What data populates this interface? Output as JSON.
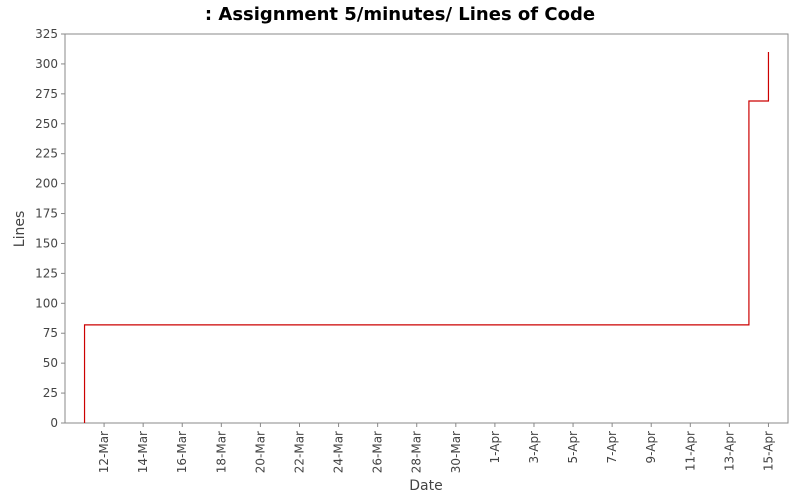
{
  "chart_data": {
    "type": "step",
    "title": ": Assignment 5/minutes/ Lines of Code",
    "x_label": "Date",
    "y_label": "Lines",
    "x": [
      "11-Mar",
      "11-Mar",
      "14-Apr",
      "15-Apr"
    ],
    "series": [
      {
        "name": "Lines",
        "color": "#cc0000",
        "values": [
          0,
          82,
          269,
          310
        ]
      }
    ],
    "xlim": [
      "10-Mar",
      "16-Apr"
    ],
    "xticks": [
      "12-Mar",
      "14-Mar",
      "16-Mar",
      "18-Mar",
      "20-Mar",
      "22-Mar",
      "24-Mar",
      "26-Mar",
      "28-Mar",
      "30-Mar",
      "1-Apr",
      "3-Apr",
      "5-Apr",
      "7-Apr",
      "9-Apr",
      "11-Apr",
      "13-Apr",
      "15-Apr"
    ],
    "ylim": [
      0,
      325
    ],
    "yticks": [
      0,
      25,
      50,
      75,
      100,
      125,
      150,
      175,
      200,
      225,
      250,
      275,
      300,
      325
    ],
    "grid": false
  }
}
